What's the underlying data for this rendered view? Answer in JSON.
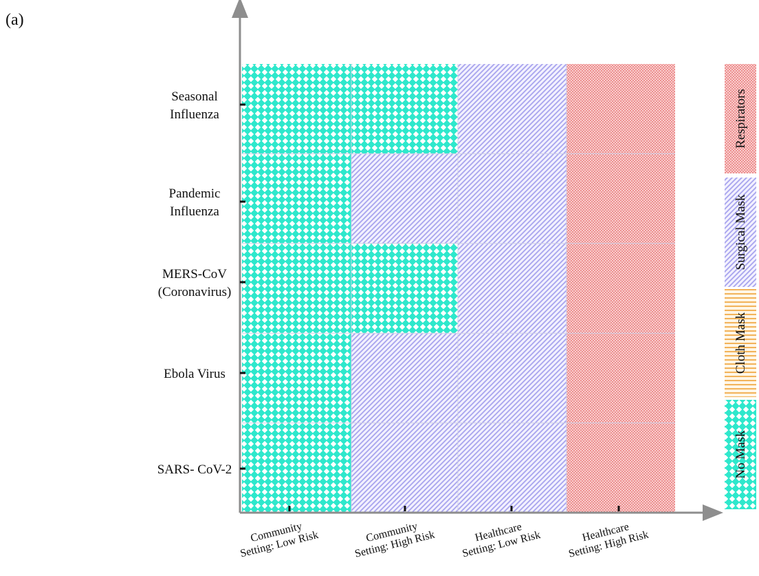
{
  "panel_label": "(a)",
  "chart_data": {
    "type": "heatmap",
    "title": "",
    "xlabel": "",
    "ylabel": "",
    "x_categories": [
      [
        "Community",
        "Setting: Low Risk"
      ],
      [
        "Community",
        "Setting: High Risk"
      ],
      [
        "Healthcare",
        "Setting: Low Risk"
      ],
      [
        "Healthcare",
        "Setting: High Risk"
      ]
    ],
    "y_categories": [
      [
        "Seasonal",
        "Influenza"
      ],
      [
        "Pandemic",
        "Influenza"
      ],
      [
        "MERS-CoV",
        "(Coronavirus)"
      ],
      [
        "Ebola Virus"
      ],
      [
        "SARS- CoV-2"
      ]
    ],
    "cells": [
      [
        "No Mask",
        "No Mask",
        "Surgical Mask",
        "Respirators"
      ],
      [
        "No Mask",
        "Surgical Mask",
        "Surgical Mask",
        "Respirators"
      ],
      [
        "No Mask",
        "No Mask",
        "Surgical Mask",
        "Respirators"
      ],
      [
        "No Mask",
        "Surgical Mask",
        "Surgical Mask",
        "Respirators"
      ],
      [
        "No Mask",
        "Surgical Mask",
        "Surgical Mask",
        "Respirators"
      ]
    ],
    "legend": {
      "placement": "right",
      "items": [
        {
          "label": "Respirators",
          "pattern": "dots",
          "color": "#ec8a8a"
        },
        {
          "label": "Surgical Mask",
          "pattern": "diagonal",
          "color": "#a8a4ee"
        },
        {
          "label": "Cloth Mask",
          "pattern": "horizontal",
          "color": "#f2b35a"
        },
        {
          "label": "No Mask",
          "pattern": "checker",
          "color": "#2ee8cc"
        }
      ]
    },
    "grid": true
  }
}
